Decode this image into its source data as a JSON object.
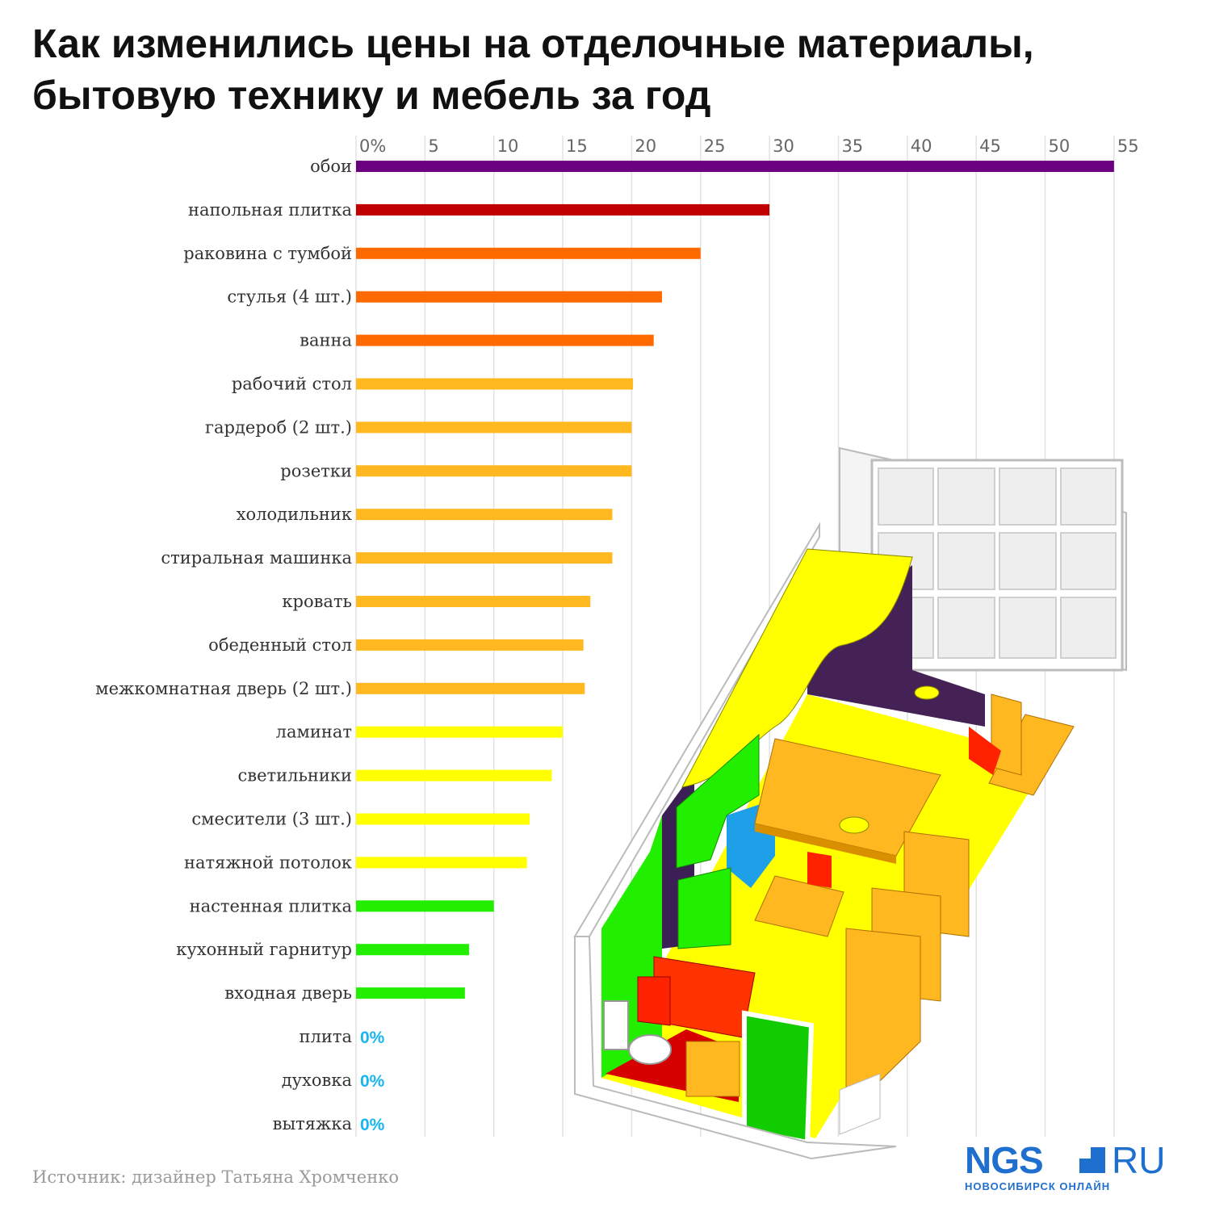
{
  "title": "Как изменились цены на отделочные материалы, бытовую технику и мебель за год",
  "source": "Источник: дизайнер Татьяна Хромченко",
  "logo": {
    "main": "NGS",
    "ru": "RU",
    "sub": "НОВОСИБИРСК ОНЛАЙН"
  },
  "chart_data": {
    "type": "bar",
    "orientation": "horizontal",
    "title": "Как изменились цены на отделочные материалы, бытовую технику и мебель за год",
    "xlim": [
      0,
      55
    ],
    "xticks": [
      "0%",
      "5",
      "10",
      "15",
      "20",
      "25",
      "30",
      "35",
      "40",
      "45",
      "50",
      "55"
    ],
    "grid": true,
    "unit": "%",
    "categories": [
      "обои",
      "напольная плитка",
      "раковина с тумбой",
      "стулья (4 шт.)",
      "ванна",
      "рабочий стол",
      "гардероб (2 шт.)",
      "розетки",
      "холодильник",
      "стиральная машинка",
      "кровать",
      "обеденный стол",
      "межкомнатная дверь (2 шт.)",
      "ламинат",
      "светильники",
      "смесители (3 шт.)",
      "натяжной потолок",
      "настенная плитка",
      "кухонный гарнитур",
      "входная дверь",
      "плита",
      "духовка",
      "вытяжка"
    ],
    "values": [
      55,
      30,
      25,
      22.2,
      21.6,
      20.1,
      20,
      20,
      18.6,
      18.6,
      17,
      16.5,
      16.6,
      15,
      14.2,
      12.6,
      12.4,
      10,
      8.2,
      7.9,
      0,
      0,
      0
    ],
    "colors": [
      "#6a0080",
      "#c00000",
      "#ff6a00",
      "#ff6a00",
      "#ff6a00",
      "#ffb820",
      "#ffb820",
      "#ffb820",
      "#ffb820",
      "#ffb820",
      "#ffb820",
      "#ffb820",
      "#ffb820",
      "#ffff00",
      "#ffff00",
      "#ffff00",
      "#ffff00",
      "#22ee00",
      "#22ee00",
      "#22ee00",
      "#19b5f0",
      "#19b5f0",
      "#19b5f0"
    ],
    "data_labels": [
      "",
      "",
      "",
      "",
      "",
      "",
      "",
      "",
      "",
      "",
      "",
      "",
      "",
      "",
      "",
      "",
      "",
      "",
      "",
      "",
      "0%",
      "0%",
      "0%"
    ]
  }
}
